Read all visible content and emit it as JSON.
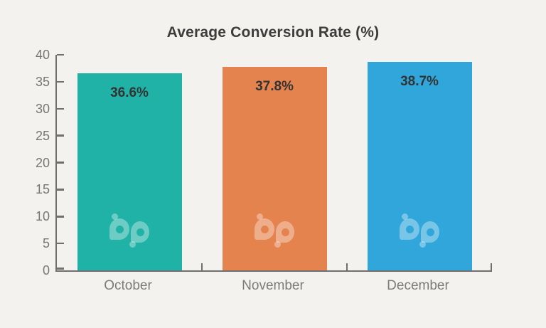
{
  "chart_data": {
    "type": "bar",
    "title": "Average Conversion Rate (%)",
    "categories": [
      "October",
      "November",
      "December"
    ],
    "values": [
      36.6,
      37.8,
      38.7
    ],
    "value_labels": [
      "36.6%",
      "37.8%",
      "38.7%"
    ],
    "bar_colors": [
      "#20b2a6",
      "#e5834f",
      "#31a6db"
    ],
    "ylim": [
      0,
      40
    ],
    "yticks": [
      0,
      5,
      10,
      15,
      20,
      25,
      30,
      35,
      40
    ],
    "xlabel": "",
    "ylabel": "",
    "grid": false,
    "legend": "none",
    "watermark_icon": "bp-logo",
    "watermark_tint": "rgba(255,255,255,0.35)",
    "axis_color": "#6f6f6f",
    "background_color": "#f3f2ee",
    "title_color": "#3d3d3d",
    "value_label_color": "#333333",
    "tick_label_color": "#767676"
  }
}
